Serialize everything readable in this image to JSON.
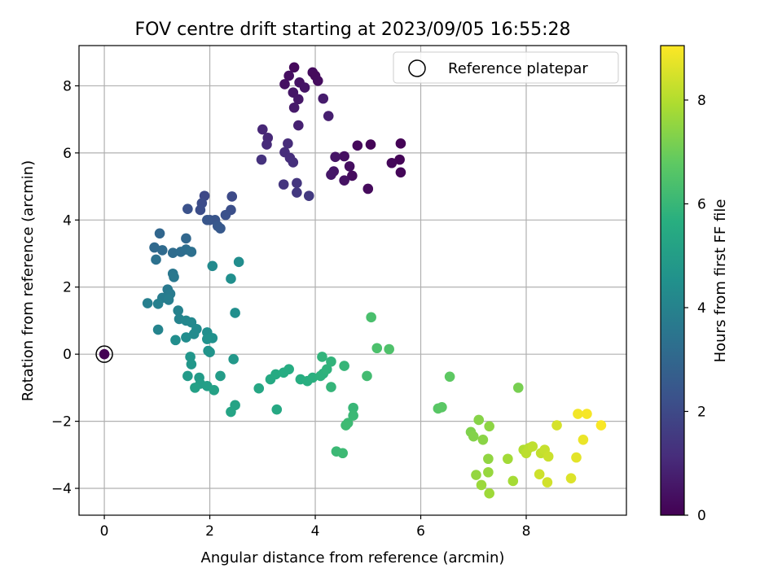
{
  "chart_data": {
    "type": "scatter",
    "title": "FOV centre drift starting at 2023/09/05 16:55:28",
    "xlabel": "Angular distance from reference (arcmin)",
    "ylabel": "Rotation from reference (arcmin)",
    "xlim": [
      -0.48,
      9.9
    ],
    "ylim": [
      -4.8,
      9.2
    ],
    "xticks": [
      0,
      2,
      4,
      6,
      8
    ],
    "yticks": [
      -4,
      -2,
      0,
      2,
      4,
      6,
      8
    ],
    "grid": true,
    "legend": {
      "placement": "top-right",
      "entries": [
        "Reference platepar"
      ]
    },
    "reference_point": {
      "x": 0,
      "y": 0
    },
    "colorbar": {
      "label": "Hours from first FF file",
      "colormap": "viridis",
      "range": [
        0,
        9.05
      ],
      "ticks": [
        0,
        2,
        4,
        6,
        8
      ]
    },
    "points": [
      {
        "x": 3.6,
        "y": 8.55,
        "h": 0.2
      },
      {
        "x": 3.95,
        "y": 8.4,
        "h": 0.3
      },
      {
        "x": 4.0,
        "y": 8.3,
        "h": 0.25
      },
      {
        "x": 4.05,
        "y": 8.15,
        "h": 0.3
      },
      {
        "x": 3.5,
        "y": 8.3,
        "h": 0.35
      },
      {
        "x": 3.42,
        "y": 8.05,
        "h": 0.4
      },
      {
        "x": 3.7,
        "y": 8.1,
        "h": 0.45
      },
      {
        "x": 3.8,
        "y": 7.95,
        "h": 0.5
      },
      {
        "x": 3.58,
        "y": 7.8,
        "h": 0.55
      },
      {
        "x": 3.68,
        "y": 7.6,
        "h": 0.6
      },
      {
        "x": 3.6,
        "y": 7.35,
        "h": 0.65
      },
      {
        "x": 4.15,
        "y": 7.62,
        "h": 0.7
      },
      {
        "x": 4.25,
        "y": 7.1,
        "h": 0.8
      },
      {
        "x": 3.68,
        "y": 6.82,
        "h": 0.85
      },
      {
        "x": 5.62,
        "y": 6.28,
        "h": 0.05
      },
      {
        "x": 5.05,
        "y": 6.25,
        "h": 0.1
      },
      {
        "x": 4.8,
        "y": 6.22,
        "h": 0.2
      },
      {
        "x": 5.6,
        "y": 5.8,
        "h": 0.08
      },
      {
        "x": 5.45,
        "y": 5.7,
        "h": 0.15
      },
      {
        "x": 5.62,
        "y": 5.42,
        "h": 0.12
      },
      {
        "x": 4.55,
        "y": 5.9,
        "h": 0.4
      },
      {
        "x": 4.38,
        "y": 5.88,
        "h": 0.5
      },
      {
        "x": 4.65,
        "y": 5.6,
        "h": 0.35
      },
      {
        "x": 4.35,
        "y": 5.45,
        "h": 0.55
      },
      {
        "x": 4.3,
        "y": 5.35,
        "h": 0.6
      },
      {
        "x": 4.7,
        "y": 5.32,
        "h": 0.3
      },
      {
        "x": 4.55,
        "y": 5.18,
        "h": 0.45
      },
      {
        "x": 5.0,
        "y": 4.93,
        "h": 0.25
      },
      {
        "x": 3.0,
        "y": 6.7,
        "h": 1.0
      },
      {
        "x": 3.1,
        "y": 6.45,
        "h": 1.05
      },
      {
        "x": 3.08,
        "y": 6.25,
        "h": 1.1
      },
      {
        "x": 3.48,
        "y": 6.28,
        "h": 1.15
      },
      {
        "x": 3.42,
        "y": 6.02,
        "h": 1.2
      },
      {
        "x": 3.52,
        "y": 5.85,
        "h": 1.2
      },
      {
        "x": 3.58,
        "y": 5.72,
        "h": 1.25
      },
      {
        "x": 2.98,
        "y": 5.8,
        "h": 1.3
      },
      {
        "x": 3.4,
        "y": 5.06,
        "h": 1.4
      },
      {
        "x": 3.65,
        "y": 5.1,
        "h": 1.45
      },
      {
        "x": 3.65,
        "y": 4.82,
        "h": 1.5
      },
      {
        "x": 3.88,
        "y": 4.72,
        "h": 1.55
      },
      {
        "x": 1.9,
        "y": 4.72,
        "h": 2.0
      },
      {
        "x": 2.42,
        "y": 4.7,
        "h": 2.05
      },
      {
        "x": 1.85,
        "y": 4.5,
        "h": 2.1
      },
      {
        "x": 1.82,
        "y": 4.3,
        "h": 2.15
      },
      {
        "x": 2.4,
        "y": 4.3,
        "h": 2.2
      },
      {
        "x": 2.3,
        "y": 4.15,
        "h": 2.25
      },
      {
        "x": 1.58,
        "y": 4.33,
        "h": 2.3
      },
      {
        "x": 2.0,
        "y": 4.0,
        "h": 2.35
      },
      {
        "x": 2.1,
        "y": 4.0,
        "h": 2.4
      },
      {
        "x": 1.95,
        "y": 4.0,
        "h": 2.45
      },
      {
        "x": 2.15,
        "y": 3.82,
        "h": 2.5
      },
      {
        "x": 2.2,
        "y": 3.75,
        "h": 2.55
      },
      {
        "x": 1.05,
        "y": 3.6,
        "h": 3.0
      },
      {
        "x": 1.55,
        "y": 3.45,
        "h": 3.05
      },
      {
        "x": 0.95,
        "y": 3.18,
        "h": 3.1
      },
      {
        "x": 1.1,
        "y": 3.1,
        "h": 3.15
      },
      {
        "x": 1.3,
        "y": 3.02,
        "h": 3.2
      },
      {
        "x": 1.45,
        "y": 3.05,
        "h": 3.25
      },
      {
        "x": 1.55,
        "y": 3.12,
        "h": 3.3
      },
      {
        "x": 1.65,
        "y": 3.05,
        "h": 3.35
      },
      {
        "x": 0.98,
        "y": 2.82,
        "h": 3.4
      },
      {
        "x": 2.05,
        "y": 2.63,
        "h": 4.3
      },
      {
        "x": 2.55,
        "y": 2.75,
        "h": 4.4
      },
      {
        "x": 2.4,
        "y": 2.25,
        "h": 4.5
      },
      {
        "x": 1.3,
        "y": 2.4,
        "h": 3.6
      },
      {
        "x": 1.32,
        "y": 2.3,
        "h": 3.65
      },
      {
        "x": 1.2,
        "y": 1.93,
        "h": 3.7
      },
      {
        "x": 1.25,
        "y": 1.8,
        "h": 3.75
      },
      {
        "x": 1.1,
        "y": 1.68,
        "h": 3.8
      },
      {
        "x": 1.22,
        "y": 1.62,
        "h": 3.85
      },
      {
        "x": 0.82,
        "y": 1.52,
        "h": 3.9
      },
      {
        "x": 1.02,
        "y": 1.5,
        "h": 3.95
      },
      {
        "x": 1.4,
        "y": 1.3,
        "h": 4.0
      },
      {
        "x": 1.42,
        "y": 1.05,
        "h": 4.05
      },
      {
        "x": 1.02,
        "y": 0.73,
        "h": 4.1
      },
      {
        "x": 2.48,
        "y": 1.23,
        "h": 4.5
      },
      {
        "x": 1.55,
        "y": 1.0,
        "h": 4.2
      },
      {
        "x": 1.65,
        "y": 0.95,
        "h": 4.25
      },
      {
        "x": 1.75,
        "y": 0.75,
        "h": 4.3
      },
      {
        "x": 1.7,
        "y": 0.6,
        "h": 4.35
      },
      {
        "x": 1.55,
        "y": 0.5,
        "h": 4.4
      },
      {
        "x": 1.35,
        "y": 0.42,
        "h": 4.45
      },
      {
        "x": 1.95,
        "y": 0.65,
        "h": 4.5
      },
      {
        "x": 2.05,
        "y": 0.48,
        "h": 4.55
      },
      {
        "x": 1.95,
        "y": 0.45,
        "h": 4.6
      },
      {
        "x": 1.97,
        "y": 0.1,
        "h": 4.65
      },
      {
        "x": 2.0,
        "y": 0.06,
        "h": 4.7
      },
      {
        "x": 1.63,
        "y": -0.08,
        "h": 4.75
      },
      {
        "x": 1.65,
        "y": -0.3,
        "h": 4.8
      },
      {
        "x": 2.45,
        "y": -0.15,
        "h": 4.85
      },
      {
        "x": 1.58,
        "y": -0.65,
        "h": 4.9
      },
      {
        "x": 1.8,
        "y": -0.7,
        "h": 4.95
      },
      {
        "x": 2.2,
        "y": -0.65,
        "h": 5.0
      },
      {
        "x": 1.82,
        "y": -0.88,
        "h": 5.05
      },
      {
        "x": 1.95,
        "y": -0.95,
        "h": 5.1
      },
      {
        "x": 1.72,
        "y": -1.0,
        "h": 5.15
      },
      {
        "x": 2.08,
        "y": -1.07,
        "h": 5.2
      },
      {
        "x": 2.48,
        "y": -1.52,
        "h": 5.25
      },
      {
        "x": 2.4,
        "y": -1.72,
        "h": 5.3
      },
      {
        "x": 2.93,
        "y": -1.02,
        "h": 5.4
      },
      {
        "x": 3.27,
        "y": -1.65,
        "h": 5.45
      },
      {
        "x": 3.15,
        "y": -0.75,
        "h": 5.5
      },
      {
        "x": 3.25,
        "y": -0.6,
        "h": 5.55
      },
      {
        "x": 3.4,
        "y": -0.55,
        "h": 5.6
      },
      {
        "x": 3.5,
        "y": -0.45,
        "h": 5.6
      },
      {
        "x": 3.72,
        "y": -0.75,
        "h": 5.65
      },
      {
        "x": 3.85,
        "y": -0.8,
        "h": 5.7
      },
      {
        "x": 3.95,
        "y": -0.7,
        "h": 5.75
      },
      {
        "x": 4.1,
        "y": -0.65,
        "h": 5.8
      },
      {
        "x": 4.15,
        "y": -0.58,
        "h": 5.8
      },
      {
        "x": 4.22,
        "y": -0.45,
        "h": 5.85
      },
      {
        "x": 4.13,
        "y": -0.08,
        "h": 5.9
      },
      {
        "x": 4.3,
        "y": -0.22,
        "h": 5.9
      },
      {
        "x": 4.3,
        "y": -0.98,
        "h": 5.95
      },
      {
        "x": 4.55,
        "y": -0.35,
        "h": 6.0
      },
      {
        "x": 4.72,
        "y": -1.6,
        "h": 6.05
      },
      {
        "x": 4.72,
        "y": -1.83,
        "h": 6.1
      },
      {
        "x": 4.62,
        "y": -2.05,
        "h": 6.15
      },
      {
        "x": 4.58,
        "y": -2.12,
        "h": 6.2
      },
      {
        "x": 4.4,
        "y": -2.9,
        "h": 6.1
      },
      {
        "x": 4.52,
        "y": -2.95,
        "h": 6.15
      },
      {
        "x": 4.98,
        "y": -0.65,
        "h": 6.25
      },
      {
        "x": 5.06,
        "y": 1.1,
        "h": 6.4
      },
      {
        "x": 5.17,
        "y": 0.18,
        "h": 6.45
      },
      {
        "x": 5.4,
        "y": 0.15,
        "h": 6.5
      },
      {
        "x": 6.33,
        "y": -1.62,
        "h": 6.7
      },
      {
        "x": 6.4,
        "y": -1.58,
        "h": 6.75
      },
      {
        "x": 6.55,
        "y": -0.67,
        "h": 6.8
      },
      {
        "x": 7.85,
        "y": -1.0,
        "h": 7.2
      },
      {
        "x": 6.95,
        "y": -2.32,
        "h": 7.3
      },
      {
        "x": 7.0,
        "y": -2.45,
        "h": 7.35
      },
      {
        "x": 7.1,
        "y": -1.96,
        "h": 7.4
      },
      {
        "x": 7.18,
        "y": -2.55,
        "h": 7.45
      },
      {
        "x": 7.3,
        "y": -2.15,
        "h": 7.5
      },
      {
        "x": 7.28,
        "y": -3.12,
        "h": 7.55
      },
      {
        "x": 7.05,
        "y": -3.6,
        "h": 7.6
      },
      {
        "x": 7.28,
        "y": -3.52,
        "h": 7.65
      },
      {
        "x": 7.15,
        "y": -3.9,
        "h": 7.7
      },
      {
        "x": 7.3,
        "y": -4.15,
        "h": 7.75
      },
      {
        "x": 7.65,
        "y": -3.12,
        "h": 7.8
      },
      {
        "x": 7.75,
        "y": -3.78,
        "h": 7.85
      },
      {
        "x": 7.95,
        "y": -2.85,
        "h": 8.0
      },
      {
        "x": 8.05,
        "y": -2.8,
        "h": 8.1
      },
      {
        "x": 8.0,
        "y": -2.95,
        "h": 8.15
      },
      {
        "x": 8.12,
        "y": -2.75,
        "h": 8.2
      },
      {
        "x": 8.28,
        "y": -2.95,
        "h": 8.25
      },
      {
        "x": 8.35,
        "y": -2.85,
        "h": 8.3
      },
      {
        "x": 8.42,
        "y": -3.05,
        "h": 8.35
      },
      {
        "x": 8.25,
        "y": -3.58,
        "h": 8.4
      },
      {
        "x": 8.4,
        "y": -3.82,
        "h": 8.45
      },
      {
        "x": 8.58,
        "y": -2.12,
        "h": 8.5
      },
      {
        "x": 8.85,
        "y": -3.7,
        "h": 8.6
      },
      {
        "x": 8.95,
        "y": -3.08,
        "h": 8.7
      },
      {
        "x": 9.08,
        "y": -2.55,
        "h": 8.8
      },
      {
        "x": 8.98,
        "y": -1.78,
        "h": 8.9
      },
      {
        "x": 9.15,
        "y": -1.78,
        "h": 8.95
      },
      {
        "x": 9.42,
        "y": -2.12,
        "h": 9.0
      }
    ]
  }
}
